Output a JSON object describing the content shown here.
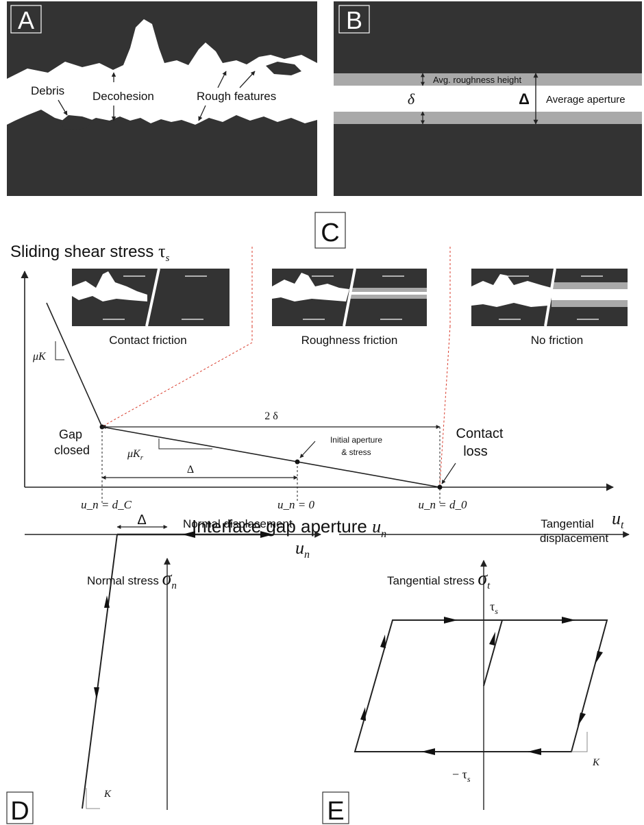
{
  "panels": {
    "a": {
      "label": "A",
      "debris": "Debris",
      "decohesion": "Decohesion",
      "rough_features": "Rough features"
    },
    "b": {
      "label": "B",
      "avg_roughness": "Avg. roughness height",
      "delta_small": "δ",
      "delta_big": "Δ",
      "avg_aperture": "Average aperture"
    },
    "c": {
      "label": "C",
      "y_title": "Sliding shear stress",
      "y_symbol": "τ",
      "y_sub": "s",
      "x_title": "Interface gap aperture",
      "x_symbol": "u",
      "x_sub": "n",
      "inset_contact": "Contact friction",
      "inset_roughness": "Roughness friction",
      "inset_none": "No friction",
      "slope_mu": "μK",
      "slope_mur": "μK",
      "slope_mur_sub": "r",
      "two_delta": "2 δ",
      "delta": "Δ",
      "gap": "Gap",
      "closed": "closed",
      "initial_1": "Initial aperture",
      "initial_2": "& stress",
      "contact": "Contact",
      "loss": "loss",
      "tick_dc": "u_n = d_C",
      "tick_zero": "u_n = 0",
      "tick_d0": "u_n = d_0"
    },
    "d": {
      "label": "D",
      "y_title": "Normal stress",
      "y_symbol": "σ",
      "y_sub": "n",
      "x_title": "Normal displacement",
      "x_symbol": "u",
      "x_sub": "n",
      "delta": "Δ",
      "k": "K"
    },
    "e": {
      "label": "E",
      "y_title": "Tangential stress",
      "y_symbol": "σ",
      "y_sub": "t",
      "x_title_1": "Tangential",
      "x_title_2": "displacement",
      "x_symbol": "u",
      "x_sub": "t",
      "tau_pos": "τ",
      "tau_neg": "− τ",
      "tau_sub": "s",
      "k": "K"
    }
  },
  "colors": {
    "dark": "#333333",
    "gray": "#a9a9a9",
    "line": "#222222",
    "guide": "#d83a2a"
  }
}
